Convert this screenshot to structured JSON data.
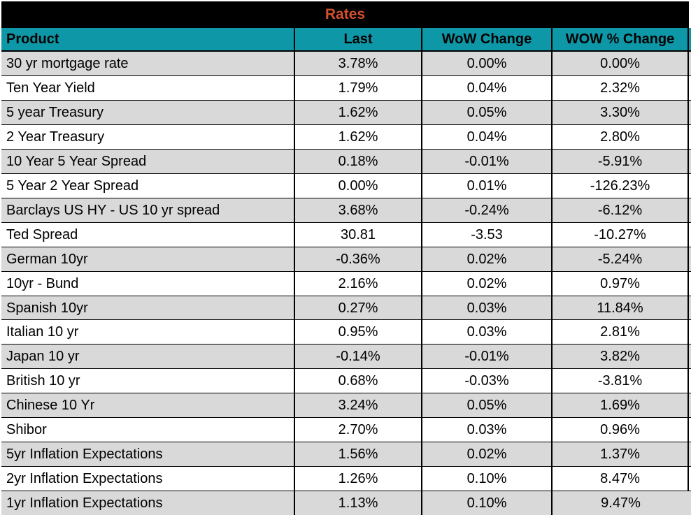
{
  "title": "Rates",
  "columns": [
    "Product",
    "Last",
    "WoW Change",
    "WOW % Change"
  ],
  "rows": [
    {
      "product": "30 yr mortgage rate",
      "last": "3.78%",
      "wow_change": "0.00%",
      "wow_pct_change": "0.00%"
    },
    {
      "product": "Ten Year Yield",
      "last": "1.79%",
      "wow_change": "0.04%",
      "wow_pct_change": "2.32%"
    },
    {
      "product": "5 year Treasury",
      "last": "1.62%",
      "wow_change": "0.05%",
      "wow_pct_change": "3.30%"
    },
    {
      "product": "2 Year Treasury",
      "last": "1.62%",
      "wow_change": "0.04%",
      "wow_pct_change": "2.80%"
    },
    {
      "product": "10 Year 5 Year Spread",
      "last": "0.18%",
      "wow_change": "-0.01%",
      "wow_pct_change": "-5.91%"
    },
    {
      "product": "5 Year 2 Year Spread",
      "last": "0.00%",
      "wow_change": "0.01%",
      "wow_pct_change": "-126.23%"
    },
    {
      "product": "Barclays US HY - US 10 yr spread",
      "last": "3.68%",
      "wow_change": "-0.24%",
      "wow_pct_change": "-6.12%"
    },
    {
      "product": "Ted Spread",
      "last": "30.81",
      "wow_change": "-3.53",
      "wow_pct_change": "-10.27%"
    },
    {
      "product": "German 10yr",
      "last": "-0.36%",
      "wow_change": "0.02%",
      "wow_pct_change": "-5.24%"
    },
    {
      "product": "10yr - Bund",
      "last": "2.16%",
      "wow_change": "0.02%",
      "wow_pct_change": "0.97%"
    },
    {
      "product": "Spanish 10yr",
      "last": "0.27%",
      "wow_change": "0.03%",
      "wow_pct_change": "11.84%"
    },
    {
      "product": "Italian 10 yr",
      "last": "0.95%",
      "wow_change": "0.03%",
      "wow_pct_change": "2.81%"
    },
    {
      "product": "Japan 10 yr",
      "last": "-0.14%",
      "wow_change": "-0.01%",
      "wow_pct_change": "3.82%"
    },
    {
      "product": "British 10 yr",
      "last": "0.68%",
      "wow_change": "-0.03%",
      "wow_pct_change": "-3.81%"
    },
    {
      "product": "Chinese 10 Yr",
      "last": "3.24%",
      "wow_change": "0.05%",
      "wow_pct_change": "1.69%"
    },
    {
      "product": "Shibor",
      "last": "2.70%",
      "wow_change": "0.03%",
      "wow_pct_change": "0.96%"
    },
    {
      "product": "5yr Inflation Expectations",
      "last": "1.56%",
      "wow_change": "0.02%",
      "wow_pct_change": "1.37%"
    },
    {
      "product": "2yr Inflation Expectations",
      "last": "1.26%",
      "wow_change": "0.10%",
      "wow_pct_change": "8.47%"
    },
    {
      "product": "1yr Inflation Expectations",
      "last": "1.13%",
      "wow_change": "0.10%",
      "wow_pct_change": "9.47%"
    }
  ],
  "colors": {
    "title_bg": "#000000",
    "title_text": "#D0502E",
    "header_bg": "#0E97A7",
    "header_text": "#000000",
    "row_even_bg": "#D9D9D9",
    "row_odd_bg": "#FFFFFF",
    "grid_border": "#000000",
    "text": "#000000"
  }
}
